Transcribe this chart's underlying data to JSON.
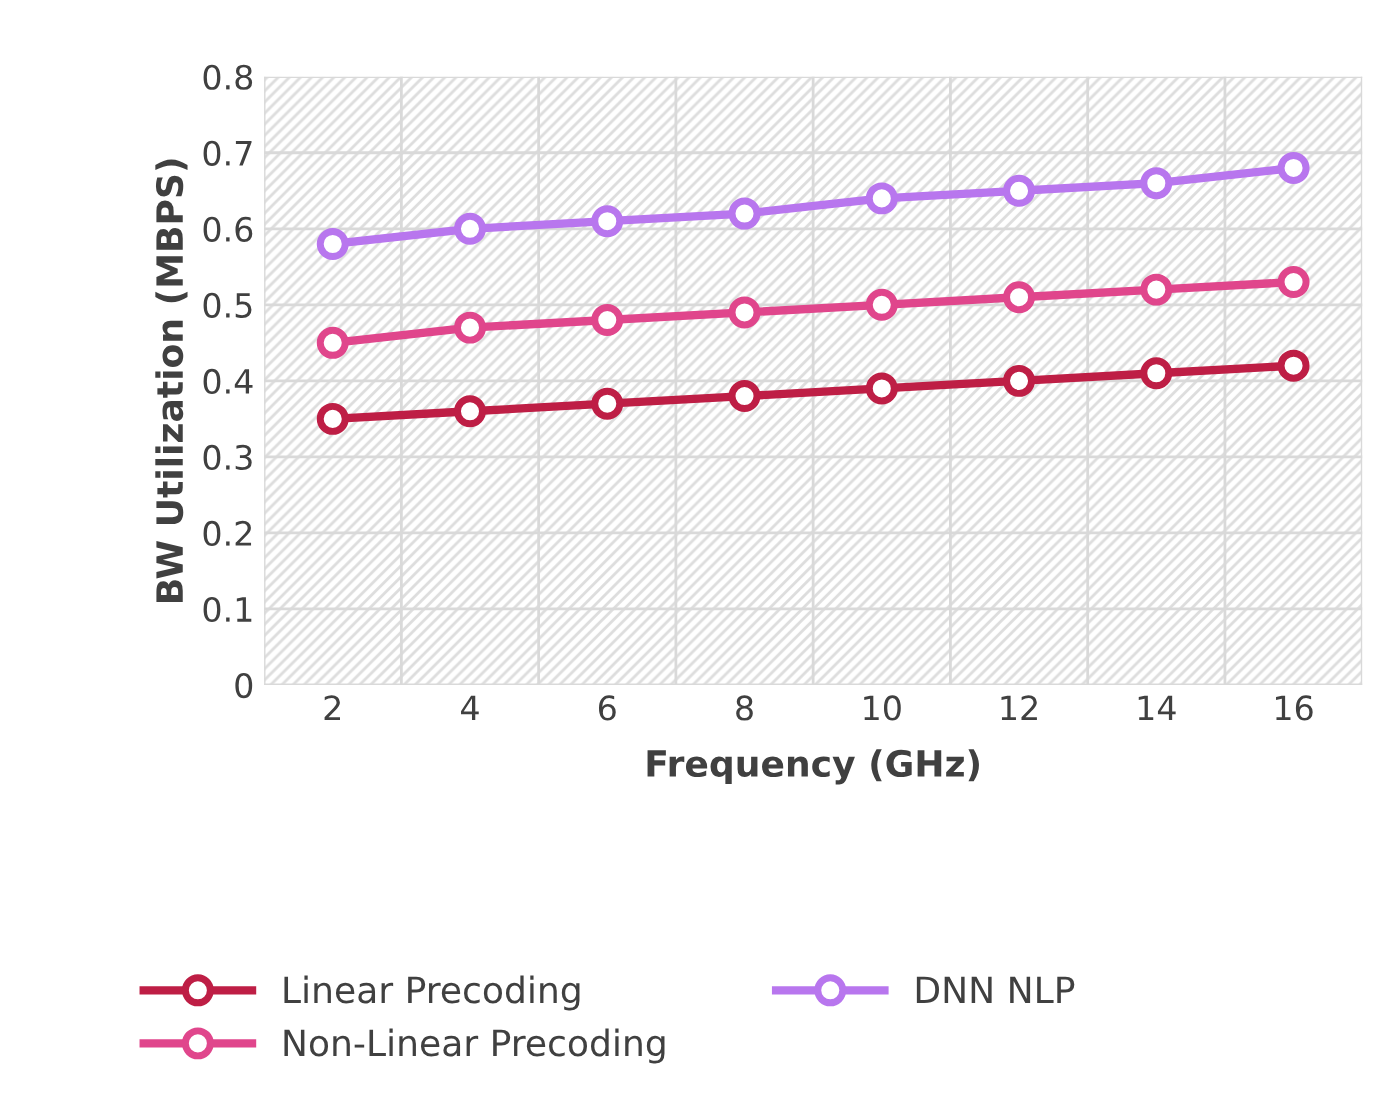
{
  "chart_data": {
    "type": "line",
    "xlabel": "Frequency (GHz)",
    "ylabel": "BW Utilization (MBPS)",
    "categories": [
      "2",
      "4",
      "6",
      "8",
      "10",
      "12",
      "14",
      "16"
    ],
    "series": [
      {
        "name": "Linear Precoding",
        "color": "#be1e45",
        "values": [
          0.35,
          0.36,
          0.37,
          0.38,
          0.39,
          0.4,
          0.41,
          0.42
        ]
      },
      {
        "name": "Non-Linear Precoding",
        "color": "#e0468c",
        "values": [
          0.45,
          0.47,
          0.48,
          0.49,
          0.5,
          0.51,
          0.52,
          0.53
        ]
      },
      {
        "name": "DNN NLP",
        "color": "#b876ee",
        "values": [
          0.58,
          0.6,
          0.61,
          0.62,
          0.64,
          0.65,
          0.66,
          0.68
        ]
      }
    ],
    "ylim": [
      0,
      0.8
    ],
    "yticks": [
      0,
      0.1,
      0.2,
      0.3,
      0.4,
      0.5,
      0.6,
      0.7,
      0.8
    ],
    "grid": true,
    "legend": "bottom",
    "marker": "circle",
    "line_style": "solid"
  }
}
